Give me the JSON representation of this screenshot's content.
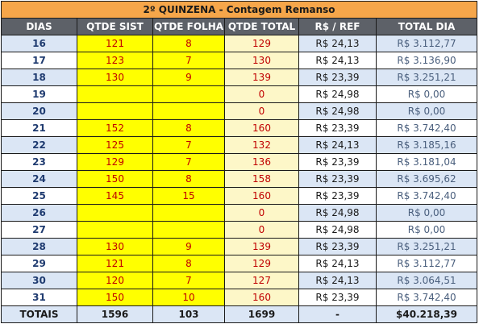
{
  "title": "2º QUINZENA - Contagem Remanso",
  "headers": {
    "dias": "DIAS",
    "qtde_sist": "QTDE SIST",
    "qtde_folha": "QTDE FOLHA",
    "qtde_total": "QTDE TOTAL",
    "ref": "R$ / REF",
    "total_dia": "TOTAL DIA"
  },
  "rows": [
    {
      "dia": "16",
      "sist": "121",
      "folha": "8",
      "total": "129",
      "ref": "R$ 24,13",
      "total_dia": "R$ 3.112,77"
    },
    {
      "dia": "17",
      "sist": "123",
      "folha": "7",
      "total": "130",
      "ref": "R$ 24,13",
      "total_dia": "R$ 3.136,90"
    },
    {
      "dia": "18",
      "sist": "130",
      "folha": "9",
      "total": "139",
      "ref": "R$ 23,39",
      "total_dia": "R$ 3.251,21"
    },
    {
      "dia": "19",
      "sist": "",
      "folha": "",
      "total": "0",
      "ref": "R$ 24,98",
      "total_dia": "R$ 0,00"
    },
    {
      "dia": "20",
      "sist": "",
      "folha": "",
      "total": "0",
      "ref": "R$ 24,98",
      "total_dia": "R$ 0,00"
    },
    {
      "dia": "21",
      "sist": "152",
      "folha": "8",
      "total": "160",
      "ref": "R$ 23,39",
      "total_dia": "R$ 3.742,40"
    },
    {
      "dia": "22",
      "sist": "125",
      "folha": "7",
      "total": "132",
      "ref": "R$ 24,13",
      "total_dia": "R$ 3.185,16"
    },
    {
      "dia": "23",
      "sist": "129",
      "folha": "7",
      "total": "136",
      "ref": "R$ 23,39",
      "total_dia": "R$ 3.181,04"
    },
    {
      "dia": "24",
      "sist": "150",
      "folha": "8",
      "total": "158",
      "ref": "R$ 23,39",
      "total_dia": "R$ 3.695,62"
    },
    {
      "dia": "25",
      "sist": "145",
      "folha": "15",
      "total": "160",
      "ref": "R$ 23,39",
      "total_dia": "R$ 3.742,40"
    },
    {
      "dia": "26",
      "sist": "",
      "folha": "",
      "total": "0",
      "ref": "R$ 24,98",
      "total_dia": "R$ 0,00"
    },
    {
      "dia": "27",
      "sist": "",
      "folha": "",
      "total": "0",
      "ref": "R$ 24,98",
      "total_dia": "R$ 0,00"
    },
    {
      "dia": "28",
      "sist": "130",
      "folha": "9",
      "total": "139",
      "ref": "R$ 23,39",
      "total_dia": "R$ 3.251,21"
    },
    {
      "dia": "29",
      "sist": "121",
      "folha": "8",
      "total": "129",
      "ref": "R$ 24,13",
      "total_dia": "R$ 3.112,77"
    },
    {
      "dia": "30",
      "sist": "120",
      "folha": "7",
      "total": "127",
      "ref": "R$ 24,13",
      "total_dia": "R$ 3.064,51"
    },
    {
      "dia": "31",
      "sist": "150",
      "folha": "10",
      "total": "160",
      "ref": "R$ 23,39",
      "total_dia": "R$ 3.742,40"
    }
  ],
  "totals": {
    "label": "TOTAIS",
    "sist": "1596",
    "folha": "103",
    "total": "1699",
    "ref": "-",
    "total_dia": "$40.218,39"
  }
}
